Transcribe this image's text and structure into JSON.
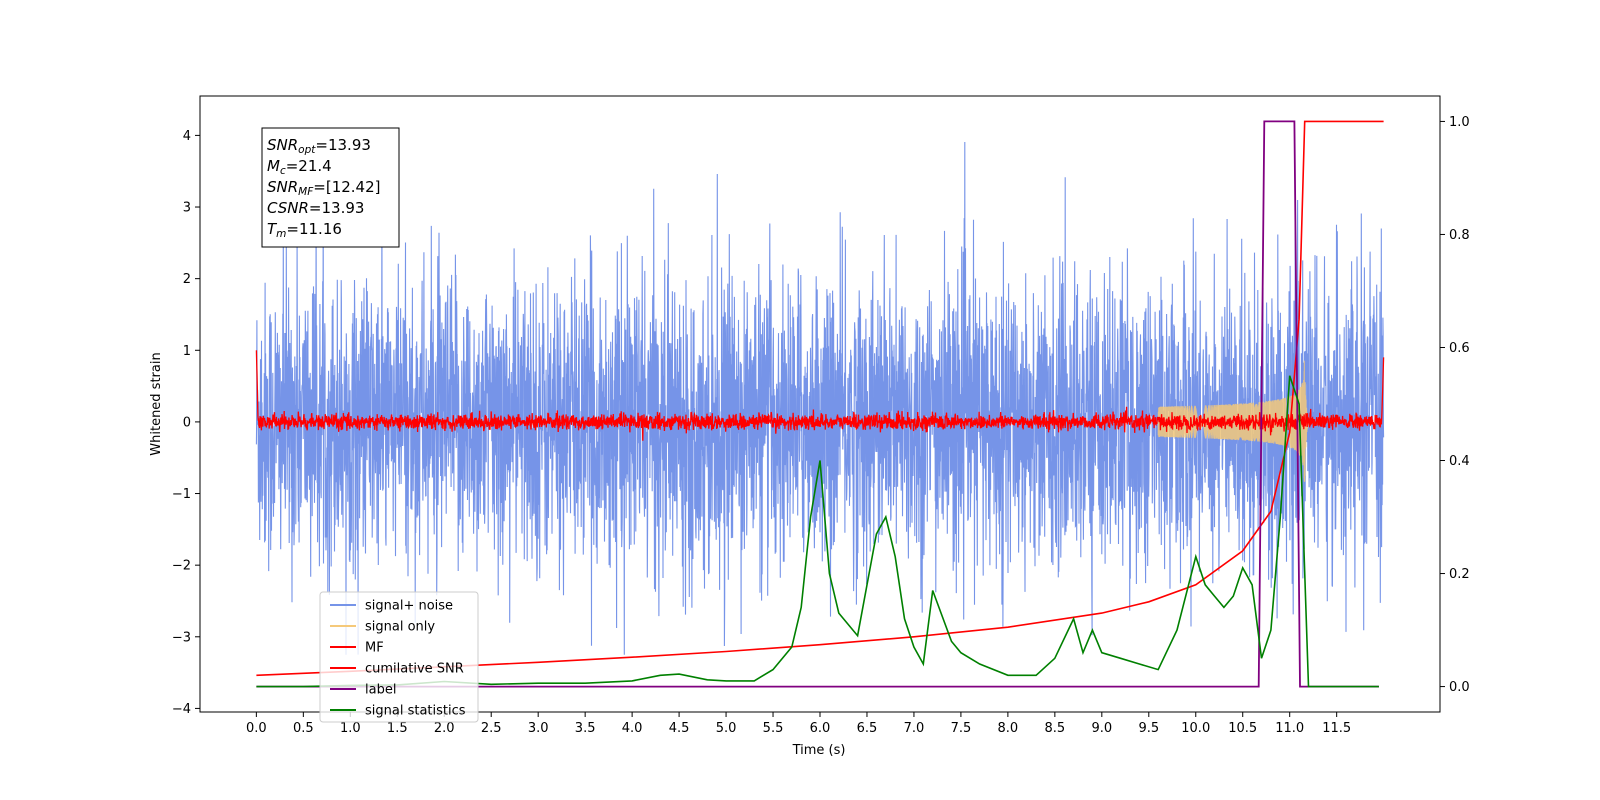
{
  "chart_data": {
    "type": "line",
    "title": "",
    "xlabel": "Time (s)",
    "ylabel": "Whitened strain",
    "xlim": [
      -0.6,
      12.6
    ],
    "ylim": [
      -4.05,
      4.55
    ],
    "y2lim": [
      -0.045,
      1.045
    ],
    "x_ticks": [
      0.0,
      0.5,
      1.0,
      1.5,
      2.0,
      2.5,
      3.0,
      3.5,
      4.0,
      4.5,
      5.0,
      5.5,
      6.0,
      6.5,
      7.0,
      7.5,
      8.0,
      8.5,
      9.0,
      9.5,
      10.0,
      10.5,
      11.0,
      11.5
    ],
    "x_tick_labels": [
      "0.0",
      "0.5",
      "1.0",
      "1.5",
      "2.0",
      "2.5",
      "3.0",
      "3.5",
      "4.0",
      "4.5",
      "5.0",
      "5.5",
      "6.0",
      "6.5",
      "7.0",
      "7.5",
      "8.0",
      "8.5",
      "9.0",
      "9.5",
      "10.0",
      "10.5",
      "11.0",
      "11.5"
    ],
    "y_ticks": [
      -4,
      -3,
      -2,
      -1,
      0,
      1,
      2,
      3,
      4
    ],
    "y_tick_labels": [
      "−4",
      "−3",
      "−2",
      "−1",
      "0",
      "1",
      "2",
      "3",
      "4"
    ],
    "y2_ticks": [
      0.0,
      0.2,
      0.4,
      0.6,
      0.8,
      1.0
    ],
    "y2_tick_labels": [
      "0.0",
      "0.2",
      "0.4",
      "0.6",
      "0.8",
      "1.0"
    ],
    "grid": false,
    "legend_position": "lower-left",
    "annotation": [
      {
        "base": "SNR",
        "sub": "opt",
        "value": "=13.93"
      },
      {
        "base": "M",
        "sub": "c",
        "value": "=21.4"
      },
      {
        "base": "SNR",
        "sub": "MF",
        "value": "=[12.42]"
      },
      {
        "base": "CSNR",
        "sub": "",
        "value": "=13.93"
      },
      {
        "base": "T",
        "sub": "m",
        "value": "=11.16"
      }
    ],
    "series": [
      {
        "name": "signal+ noise",
        "axis": "left",
        "color": "#7694e8",
        "x_range": [
          0.0,
          12.0
        ],
        "noise_sigma": 1.0,
        "envelope": {
          "max": 4.17,
          "min": -3.25
        }
      },
      {
        "name": "signal only",
        "axis": "left",
        "color": "#f5c97a",
        "chirp": {
          "t_merge": 11.16,
          "start": 9.6,
          "peak_amplitude": 0.95
        }
      },
      {
        "name": "MF",
        "axis": "left",
        "color": "#ff0000",
        "x_range": [
          0.0,
          12.0
        ],
        "band": 0.1,
        "edge_values": [
          1.0,
          0.9
        ]
      },
      {
        "name": "cumilative SNR",
        "axis": "right",
        "color": "#ff0000",
        "x": [
          0.0,
          1.0,
          2.0,
          3.0,
          4.0,
          5.0,
          6.0,
          7.0,
          8.0,
          9.0,
          9.5,
          10.0,
          10.5,
          10.8,
          11.0,
          11.1,
          11.16,
          11.5,
          12.0
        ],
        "y": [
          0.02,
          0.027,
          0.035,
          0.043,
          0.052,
          0.062,
          0.074,
          0.088,
          0.105,
          0.13,
          0.15,
          0.18,
          0.24,
          0.31,
          0.45,
          0.65,
          1.0,
          1.0,
          1.0
        ]
      },
      {
        "name": "label",
        "axis": "right",
        "color": "#800080",
        "x": [
          0.0,
          10.67,
          10.73,
          11.05,
          11.11,
          11.95
        ],
        "y": [
          0.0,
          0.0,
          1.0,
          1.0,
          0.0,
          0.0
        ]
      },
      {
        "name": "signal statistics",
        "axis": "right",
        "color": "#008000",
        "x": [
          0.0,
          0.5,
          1.0,
          1.5,
          2.0,
          2.5,
          3.0,
          3.5,
          4.0,
          4.3,
          4.5,
          4.8,
          5.0,
          5.3,
          5.5,
          5.7,
          5.8,
          5.9,
          6.0,
          6.1,
          6.2,
          6.4,
          6.6,
          6.7,
          6.8,
          6.9,
          7.0,
          7.1,
          7.2,
          7.4,
          7.5,
          7.7,
          8.0,
          8.3,
          8.5,
          8.7,
          8.8,
          8.9,
          9.0,
          9.2,
          9.4,
          9.6,
          9.8,
          10.0,
          10.1,
          10.2,
          10.3,
          10.4,
          10.5,
          10.6,
          10.7,
          10.8,
          10.9,
          11.0,
          11.1,
          11.2,
          11.3,
          11.5,
          11.95
        ],
        "y": [
          0.0,
          0.0,
          0.002,
          0.003,
          0.009,
          0.004,
          0.006,
          0.006,
          0.01,
          0.02,
          0.022,
          0.012,
          0.01,
          0.01,
          0.03,
          0.07,
          0.14,
          0.3,
          0.4,
          0.2,
          0.13,
          0.09,
          0.27,
          0.3,
          0.23,
          0.12,
          0.07,
          0.04,
          0.17,
          0.08,
          0.06,
          0.04,
          0.02,
          0.02,
          0.05,
          0.12,
          0.06,
          0.1,
          0.06,
          0.05,
          0.04,
          0.03,
          0.1,
          0.23,
          0.18,
          0.16,
          0.14,
          0.16,
          0.21,
          0.18,
          0.05,
          0.1,
          0.3,
          0.55,
          0.5,
          0.0,
          0.0,
          0.0,
          0.0
        ]
      }
    ]
  }
}
